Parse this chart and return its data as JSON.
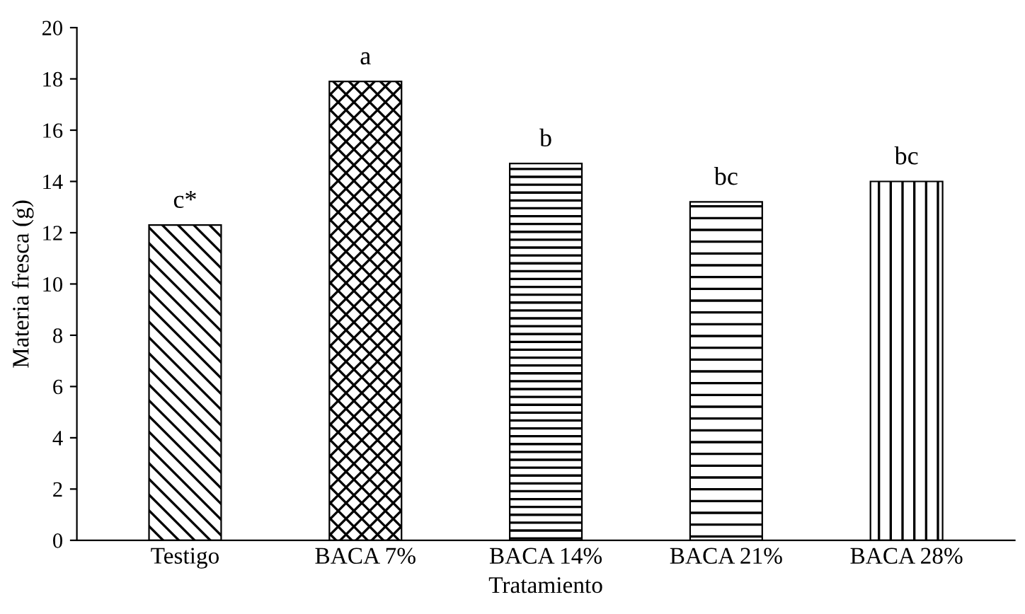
{
  "chart_data": {
    "type": "bar",
    "xlabel": "Tratamiento",
    "ylabel": "Materia fresca (g)",
    "categories": [
      "Testigo",
      "BACA 7%",
      "BACA 14%",
      "BACA 21%",
      "BACA 28%"
    ],
    "values": [
      12.3,
      17.9,
      14.7,
      13.2,
      14.0
    ],
    "color": "#000000",
    "ylim": [
      0,
      20
    ],
    "yticks": [
      0,
      2,
      4,
      6,
      8,
      10,
      12,
      14,
      16,
      18,
      20
    ],
    "grid": false,
    "annotations": [
      {
        "text": "c*",
        "x": "Testigo",
        "y": 12.3
      },
      {
        "text": "a",
        "x": "BACA 7%",
        "y": 17.9
      },
      {
        "text": "b",
        "x": "BACA 14%",
        "y": 14.7
      },
      {
        "text": "bc",
        "x": "BACA 21%",
        "y": 13.2
      },
      {
        "text": "bc",
        "x": "BACA 28%",
        "y": 14.0
      }
    ]
  }
}
